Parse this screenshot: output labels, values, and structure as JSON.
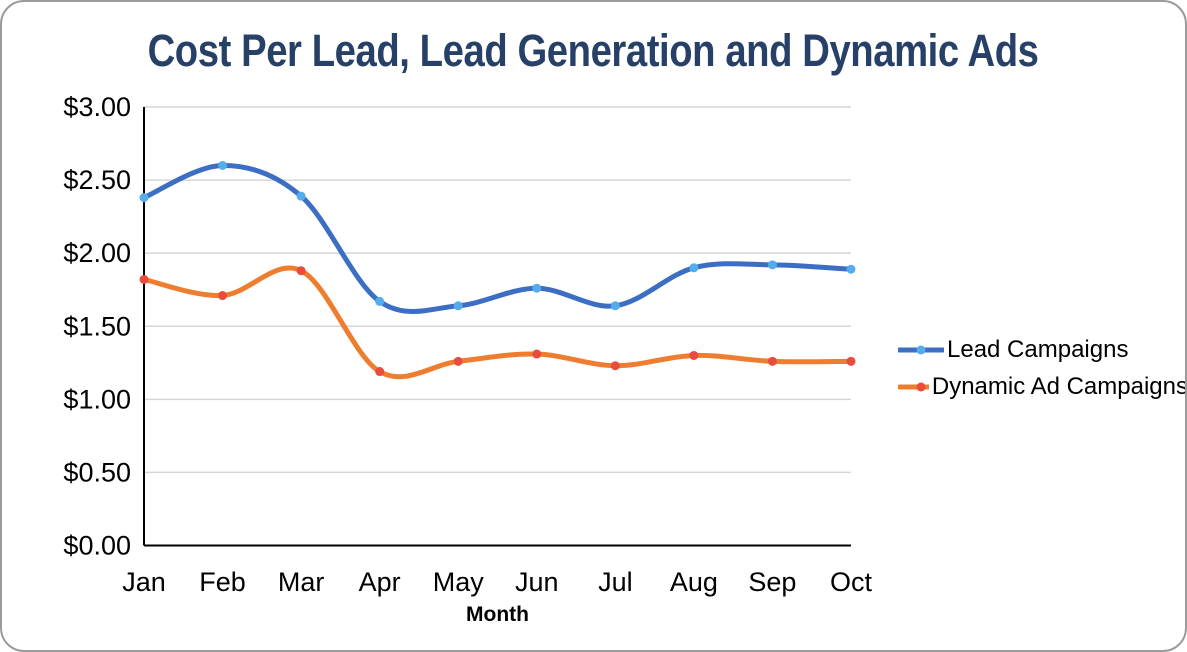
{
  "chart_data": {
    "type": "line",
    "title": "Cost Per Lead, Lead Generation and Dynamic Ads",
    "xlabel": "Month",
    "ylabel": "",
    "categories": [
      "Jan",
      "Feb",
      "Mar",
      "Apr",
      "May",
      "Jun",
      "Jul",
      "Aug",
      "Sep",
      "Oct"
    ],
    "series": [
      {
        "name": "Lead Campaigns",
        "values": [
          2.38,
          2.6,
          2.39,
          1.67,
          1.64,
          1.76,
          1.64,
          1.9,
          1.92,
          1.89
        ],
        "line_color": "#3c6ec4",
        "marker_color": "#54acec"
      },
      {
        "name": "Dynamic Ad Campaigns",
        "values": [
          1.82,
          1.71,
          1.88,
          1.19,
          1.26,
          1.31,
          1.23,
          1.3,
          1.26,
          1.26
        ],
        "line_color": "#ef7d2f",
        "marker_color": "#ea4c3b"
      }
    ],
    "ylim": [
      0,
      3
    ],
    "yticks": [
      {
        "value": 0.0,
        "label": "$0.00"
      },
      {
        "value": 0.5,
        "label": "$0.50"
      },
      {
        "value": 1.0,
        "label": "$1.00"
      },
      {
        "value": 1.5,
        "label": "$1.50"
      },
      {
        "value": 2.0,
        "label": "$2.00"
      },
      {
        "value": 2.5,
        "label": "$2.50"
      },
      {
        "value": 3.0,
        "label": "$3.00"
      }
    ],
    "grid": "horizontal",
    "line_smoothing": true,
    "legend_position": "right"
  },
  "styles": {
    "title_color": "#274067",
    "grid_color": "#d6d6d6",
    "axis_color": "#000000",
    "card_border_color": "#9b9b9b"
  }
}
